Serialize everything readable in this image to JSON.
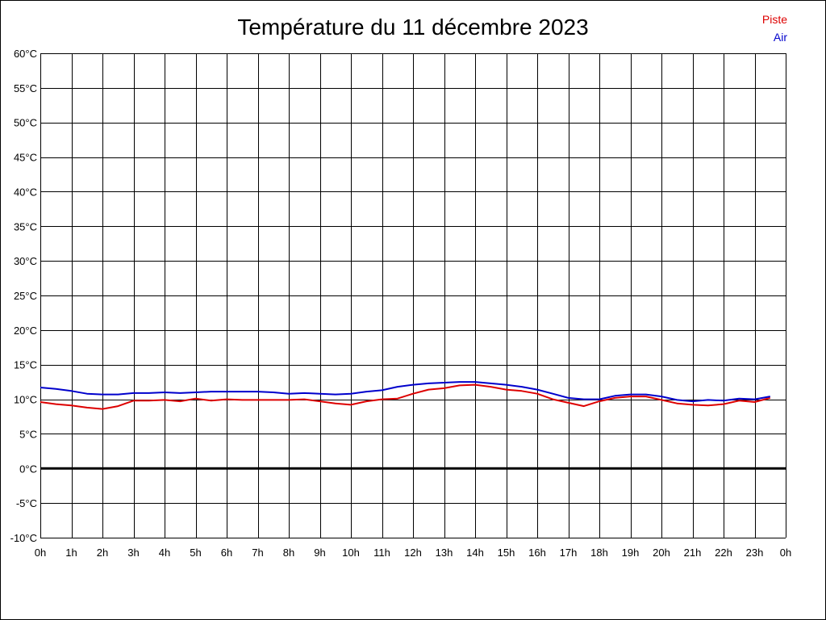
{
  "chart_data": {
    "type": "line",
    "title": "Température du 11 décembre 2023",
    "x_tick_labels": [
      "0h",
      "1h",
      "2h",
      "3h",
      "4h",
      "5h",
      "6h",
      "7h",
      "8h",
      "9h",
      "10h",
      "11h",
      "12h",
      "13h",
      "14h",
      "15h",
      "16h",
      "17h",
      "18h",
      "19h",
      "20h",
      "21h",
      "22h",
      "23h",
      "0h"
    ],
    "y_tick_labels": [
      "60°C",
      "55°C",
      "50°C",
      "45°C",
      "40°C",
      "35°C",
      "30°C",
      "25°C",
      "20°C",
      "15°C",
      "10°C",
      "5°C",
      "0°C",
      "-5°C",
      "-10°C"
    ],
    "ylim": [
      -10,
      60
    ],
    "xlim": [
      0,
      24
    ],
    "grid": true,
    "legend_position": "top-right",
    "zero_line": true,
    "series": [
      {
        "name": "Piste",
        "color": "#dd0000",
        "x": [
          0,
          0.5,
          1,
          1.5,
          2,
          2.5,
          3,
          3.5,
          4,
          4.5,
          5,
          5.5,
          6,
          6.5,
          7,
          7.5,
          8,
          8.5,
          9,
          9.5,
          10,
          10.5,
          11,
          11.5,
          12,
          12.5,
          13,
          13.5,
          14,
          14.5,
          15,
          15.5,
          16,
          16.5,
          17,
          17.5,
          18,
          18.5,
          19,
          19.5,
          20,
          20.5,
          21,
          21.5,
          22,
          22.5,
          23,
          23.5
        ],
        "values": [
          9.6,
          9.3,
          9.1,
          8.8,
          8.6,
          9.0,
          9.8,
          9.8,
          9.9,
          9.7,
          10.1,
          9.8,
          10.0,
          9.9,
          9.9,
          9.9,
          9.9,
          10.0,
          9.7,
          9.4,
          9.2,
          9.7,
          10.0,
          10.1,
          10.8,
          11.4,
          11.6,
          12.0,
          12.1,
          11.8,
          11.4,
          11.2,
          10.8,
          10.0,
          9.5,
          9.0,
          9.7,
          10.2,
          10.4,
          10.4,
          9.9,
          9.4,
          9.2,
          9.1,
          9.3,
          9.8,
          9.6,
          10.2
        ]
      },
      {
        "name": "Air",
        "color": "#0000cc",
        "x": [
          0,
          0.5,
          1,
          1.5,
          2,
          2.5,
          3,
          3.5,
          4,
          4.5,
          5,
          5.5,
          6,
          6.5,
          7,
          7.5,
          8,
          8.5,
          9,
          9.5,
          10,
          10.5,
          11,
          11.5,
          12,
          12.5,
          13,
          13.5,
          14,
          14.5,
          15,
          15.5,
          16,
          16.5,
          17,
          17.5,
          18,
          18.5,
          19,
          19.5,
          20,
          20.5,
          21,
          21.5,
          22,
          22.5,
          23,
          23.5
        ],
        "values": [
          11.7,
          11.5,
          11.2,
          10.8,
          10.7,
          10.7,
          10.9,
          10.9,
          11.0,
          10.9,
          11.0,
          11.1,
          11.1,
          11.1,
          11.1,
          11.0,
          10.8,
          10.9,
          10.8,
          10.7,
          10.8,
          11.1,
          11.3,
          11.8,
          12.1,
          12.3,
          12.4,
          12.5,
          12.5,
          12.3,
          12.1,
          11.8,
          11.4,
          10.8,
          10.2,
          10.0,
          10.0,
          10.5,
          10.7,
          10.7,
          10.4,
          9.9,
          9.7,
          9.9,
          9.8,
          10.1,
          10.0,
          10.4
        ]
      }
    ]
  }
}
